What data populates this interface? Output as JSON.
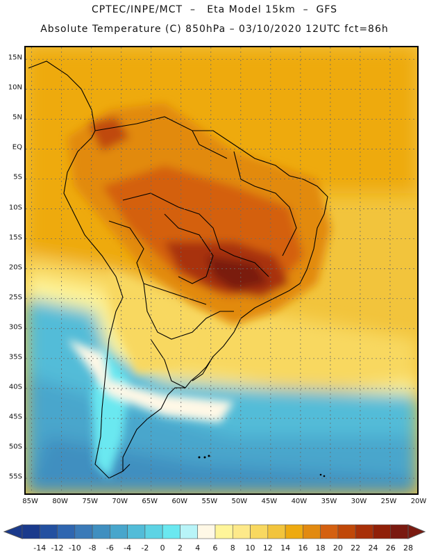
{
  "header": {
    "line1": "CPTEC/INPE/MCT  –   Eta Model 15km  –  GFS",
    "line2": "Absolute Temperature (C) 850hPa – 03/10/2020 12UTC fct=86h"
  },
  "map": {
    "lon_range": [
      -86,
      -20
    ],
    "lat_range": [
      -58,
      17
    ],
    "lat_labels": [
      "15N",
      "10N",
      "5N",
      "EQ",
      "5S",
      "10S",
      "15S",
      "20S",
      "25S",
      "30S",
      "35S",
      "40S",
      "45S",
      "50S",
      "55S"
    ],
    "lat_values": [
      15,
      10,
      5,
      0,
      -5,
      -10,
      -15,
      -20,
      -25,
      -30,
      -35,
      -40,
      -45,
      -50,
      -55
    ],
    "lon_labels": [
      "85W",
      "80W",
      "75W",
      "70W",
      "65W",
      "60W",
      "55W",
      "50W",
      "45W",
      "40W",
      "35W",
      "30W",
      "25W",
      "20W"
    ],
    "lon_values": [
      -85,
      -80,
      -75,
      -70,
      -65,
      -60,
      -55,
      -50,
      -45,
      -40,
      -35,
      -30,
      -25,
      -20
    ],
    "field": "Absolute Temperature (C) 850hPa"
  },
  "colorbar": {
    "labels": [
      "-14",
      "-12",
      "-10",
      "-8",
      "-6",
      "-4",
      "-2",
      "0",
      "2",
      "4",
      "6",
      "8",
      "10",
      "12",
      "14",
      "16",
      "18",
      "20",
      "22",
      "24",
      "26",
      "28"
    ],
    "colors": [
      "#1a3a8c",
      "#2350a0",
      "#2f66b0",
      "#3a7ab8",
      "#3f8fc0",
      "#48a6cc",
      "#52bcd8",
      "#5dd3e4",
      "#6ae8f0",
      "#b8f4f8",
      "#fff8e6",
      "#fff59a",
      "#fde98a",
      "#f8d860",
      "#f2c43c",
      "#eeaa10",
      "#e28a10",
      "#d46010",
      "#c04808",
      "#a83008",
      "#902008",
      "#7a1a10"
    ]
  }
}
